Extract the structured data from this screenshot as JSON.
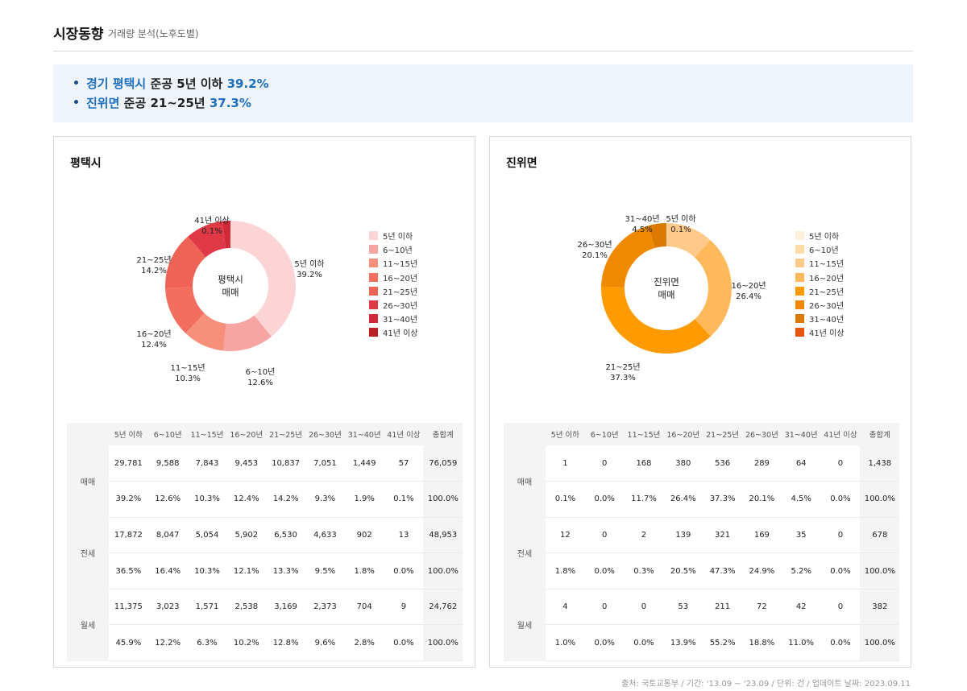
{
  "header": {
    "title": "시장동향",
    "subtitle": "거래량 분석(노후도별)"
  },
  "summary": [
    {
      "region": "경기 평택시",
      "text": "준공 5년 이하",
      "value": "39.2%"
    },
    {
      "region": "진위면",
      "text": "준공 21~25년",
      "value": "37.3%"
    }
  ],
  "panels": [
    {
      "title": "평택시",
      "center_label": [
        "평택시",
        "매매"
      ],
      "categories": [
        "5년 이하",
        "6~10년",
        "11~15년",
        "16~20년",
        "21~25년",
        "26~30년",
        "31~40년",
        "41년 이상"
      ],
      "colors": [
        "#fdd4d6",
        "#f6a5a3",
        "#f7907a",
        "#f26e5e",
        "#ef6357",
        "#de3945",
        "#d2293a",
        "#bb1f23"
      ],
      "chart_data": {
        "type": "pie",
        "title": "",
        "categories": [
          "5년 이하",
          "6~10년",
          "11~15년",
          "16~20년",
          "21~25년",
          "26~30년",
          "31~40년",
          "41년 이상"
        ],
        "values": [
          39.2,
          12.6,
          10.3,
          12.4,
          14.2,
          9.3,
          1.9,
          0.1
        ],
        "labels": [
          {
            "lines": [
              "5년 이하",
              "39.2%"
            ]
          },
          {
            "lines": [
              "6~10년",
              "12.6%"
            ]
          },
          {
            "lines": [
              "11~15년",
              "10.3%"
            ]
          },
          {
            "lines": [
              "16~20년",
              "12.4%"
            ]
          },
          {
            "lines": [
              "21~25년",
              "14.2%"
            ]
          },
          null,
          null,
          {
            "lines": [
              "41년 이상",
              "0.1%"
            ]
          }
        ],
        "legend_position": "right"
      },
      "table": {
        "headers": [
          "5년 이하",
          "6~10년",
          "11~15년",
          "16~20년",
          "21~25년",
          "26~30년",
          "31~40년",
          "41년 이상",
          "총합계"
        ],
        "groups": [
          {
            "label": "매매",
            "counts": [
              "29,781",
              "9,588",
              "7,843",
              "9,453",
              "10,837",
              "7,051",
              "1,449",
              "57",
              "76,059"
            ],
            "pcts": [
              "39.2%",
              "12.6%",
              "10.3%",
              "12.4%",
              "14.2%",
              "9.3%",
              "1.9%",
              "0.1%",
              "100.0%"
            ]
          },
          {
            "label": "전세",
            "counts": [
              "17,872",
              "8,047",
              "5,054",
              "5,902",
              "6,530",
              "4,633",
              "902",
              "13",
              "48,953"
            ],
            "pcts": [
              "36.5%",
              "16.4%",
              "10.3%",
              "12.1%",
              "13.3%",
              "9.5%",
              "1.8%",
              "0.0%",
              "100.0%"
            ]
          },
          {
            "label": "월세",
            "counts": [
              "11,375",
              "3,023",
              "1,571",
              "2,538",
              "3,169",
              "2,373",
              "704",
              "9",
              "24,762"
            ],
            "pcts": [
              "45.9%",
              "12.2%",
              "6.3%",
              "10.2%",
              "12.8%",
              "9.6%",
              "2.8%",
              "0.0%",
              "100.0%"
            ]
          }
        ]
      }
    },
    {
      "title": "진위면",
      "center_label": [
        "진위면",
        "매매"
      ],
      "categories": [
        "5년 이하",
        "6~10년",
        "11~15년",
        "16~20년",
        "21~25년",
        "26~30년",
        "31~40년",
        "41년 이상"
      ],
      "colors": [
        "#fff0dc",
        "#ffdca7",
        "#ffc98a",
        "#ffb95a",
        "#ff9a00",
        "#ef8a00",
        "#da7a00",
        "#e8550a"
      ],
      "chart_data": {
        "type": "pie",
        "title": "",
        "categories": [
          "5년 이하",
          "6~10년",
          "11~15년",
          "16~20년",
          "21~25년",
          "26~30년",
          "31~40년",
          "41년 이상"
        ],
        "values": [
          0.1,
          0.0,
          11.7,
          26.4,
          37.3,
          20.1,
          4.5,
          0.0
        ],
        "labels": [
          {
            "lines": [
              "5년 이하",
              "0.1%"
            ]
          },
          null,
          null,
          {
            "lines": [
              "16~20년",
              "26.4%"
            ]
          },
          {
            "lines": [
              "21~25년",
              "37.3%"
            ]
          },
          {
            "lines": [
              "26~30년",
              "20.1%"
            ]
          },
          {
            "lines": [
              "31~40년",
              "4.5%"
            ]
          },
          null
        ],
        "legend_position": "right"
      },
      "table": {
        "headers": [
          "5년 이하",
          "6~10년",
          "11~15년",
          "16~20년",
          "21~25년",
          "26~30년",
          "31~40년",
          "41년 이상",
          "총합계"
        ],
        "groups": [
          {
            "label": "매매",
            "counts": [
              "1",
              "0",
              "168",
              "380",
              "536",
              "289",
              "64",
              "0",
              "1,438"
            ],
            "pcts": [
              "0.1%",
              "0.0%",
              "11.7%",
              "26.4%",
              "37.3%",
              "20.1%",
              "4.5%",
              "0.0%",
              "100.0%"
            ]
          },
          {
            "label": "전세",
            "counts": [
              "12",
              "0",
              "2",
              "139",
              "321",
              "169",
              "35",
              "0",
              "678"
            ],
            "pcts": [
              "1.8%",
              "0.0%",
              "0.3%",
              "20.5%",
              "47.3%",
              "24.9%",
              "5.2%",
              "0.0%",
              "100.0%"
            ]
          },
          {
            "label": "월세",
            "counts": [
              "4",
              "0",
              "0",
              "53",
              "211",
              "72",
              "42",
              "0",
              "382"
            ],
            "pcts": [
              "1.0%",
              "0.0%",
              "0.0%",
              "13.9%",
              "55.2%",
              "18.8%",
              "11.0%",
              "0.0%",
              "100.0%"
            ]
          }
        ]
      }
    }
  ],
  "source": "출처: 국토교통부 / 기간: '13.09 ~ '23.09 / 단위: 건 / 업데이트 날짜: 2023.09.11"
}
